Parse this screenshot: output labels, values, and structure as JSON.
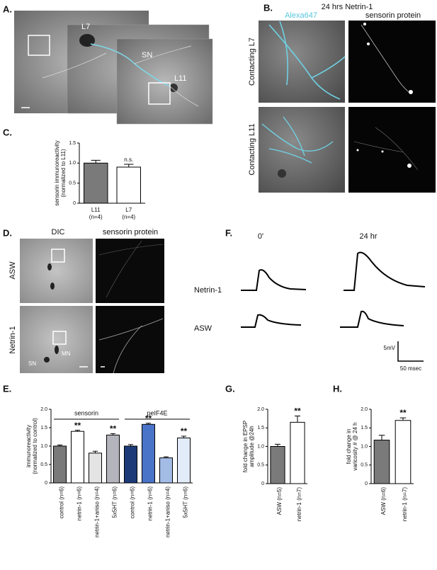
{
  "panels": {
    "A": {
      "label": "A.",
      "cells": [
        "L7",
        "SN",
        "L11"
      ]
    },
    "B": {
      "label": "B.",
      "title": "24 hrs Netrin-1",
      "columns": [
        "Alexa647",
        "sensorin protein"
      ],
      "rows": [
        "Contacting L7",
        "Contacting L11"
      ]
    },
    "C": {
      "label": "C."
    },
    "D": {
      "label": "D.",
      "columns": [
        "DIC",
        "sensorin protein"
      ],
      "rows": [
        "ASW",
        "Netrin-1"
      ],
      "cells": [
        "MN",
        "SN"
      ]
    },
    "E": {
      "label": "E."
    },
    "F": {
      "label": "F.",
      "columns": [
        "0'",
        "24 hr"
      ],
      "rows": [
        "Netrin-1",
        "ASW"
      ],
      "scale": [
        "5mV",
        "50 msec"
      ]
    },
    "G": {
      "label": "G."
    },
    "H": {
      "label": "H."
    }
  },
  "chart_data": [
    {
      "type": "bar",
      "ylabel": [
        "sensorin immunoreactivity",
        "(normalized to L11)"
      ],
      "categories": [
        "L11",
        "L7"
      ],
      "n": [
        "(n=4)",
        "(n=4)"
      ],
      "values": [
        1.0,
        0.9
      ],
      "errors": [
        0.07,
        0.07
      ],
      "colors": [
        "#7a7a7a",
        "#ffffff"
      ],
      "annotations": [
        null,
        "n.s."
      ],
      "ylim": [
        0,
        1.5
      ],
      "yticks": [
        0,
        0.5,
        {
          "value": 1,
          "label": "1.0"
        },
        1.5
      ]
    },
    {
      "type": "bar",
      "ylabel": [
        "immunoreactivity",
        "(normalized to control)"
      ],
      "groups": [
        "sensorin",
        "peIF4E"
      ],
      "categories": [
        "control (n=6)",
        "netrin-1 (n=6)",
        "netrin-1+aniso (n=4)",
        "5x5HT (n=6)",
        "control (n=6)",
        "netrin-1 (n=6)",
        "netrin-1+aniso (n=4)",
        "5x5HT (n=6)"
      ],
      "values": [
        1.0,
        1.4,
        0.81,
        1.3,
        1.0,
        1.59,
        0.68,
        1.22
      ],
      "errors": [
        0.03,
        0.03,
        0.05,
        0.04,
        0.04,
        0.03,
        0.03,
        0.05
      ],
      "colors": [
        "#7a7a7a",
        "#ffffff",
        "#e4e4e4",
        "#b4b4bc",
        "#1d3a78",
        "#4a74c8",
        "#a2bce6",
        "#e2ebf8"
      ],
      "annotations": [
        null,
        "**",
        null,
        "**",
        null,
        "**",
        null,
        "**"
      ],
      "ylim": [
        0,
        2
      ],
      "yticks": [
        0,
        0.5,
        {
          "value": 1,
          "label": "1.0"
        },
        1.5,
        {
          "value": 2,
          "label": "2.0"
        }
      ]
    },
    {
      "type": "bar",
      "ylabel": [
        "fold change in EPSP",
        "amplitude @24h"
      ],
      "categories": [
        "ASW (n=5)",
        "netrin-1 (n=7)"
      ],
      "values": [
        1.0,
        1.65
      ],
      "errors": [
        0.06,
        0.17
      ],
      "colors": [
        "#7a7a7a",
        "#ffffff"
      ],
      "annotations": [
        null,
        "**"
      ],
      "ylim": [
        0,
        2
      ],
      "yticks": [
        0,
        0.5,
        {
          "value": 1,
          "label": "1.0"
        },
        1.5,
        {
          "value": 2,
          "label": "2.0"
        }
      ]
    },
    {
      "type": "bar",
      "ylabel": [
        "fold change in",
        "varicosity # @ 24 h"
      ],
      "categories": [
        "ASW (n=6)",
        "netrin-1 (n=7)"
      ],
      "values": [
        1.17,
        1.7
      ],
      "errors": [
        0.13,
        0.07
      ],
      "colors": [
        "#7a7a7a",
        "#ffffff"
      ],
      "annotations": [
        null,
        "**"
      ],
      "ylim": [
        0,
        2
      ],
      "yticks": [
        0,
        0.5,
        {
          "value": 1,
          "label": "1.0"
        },
        1.5,
        {
          "value": 2,
          "label": "2.0"
        }
      ]
    }
  ]
}
